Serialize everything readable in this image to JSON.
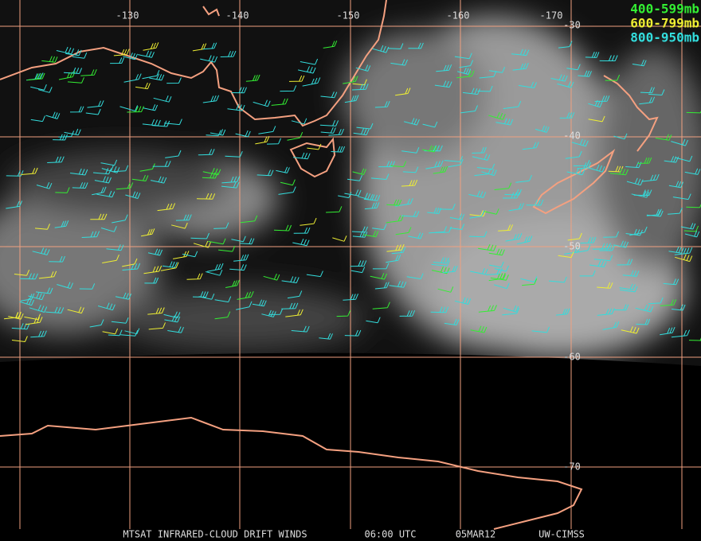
{
  "map": {
    "longitude_labels": [
      "-130",
      "-140",
      "-150",
      "-160",
      "-170"
    ],
    "latitude_labels": [
      "-30",
      "-40",
      "-50",
      "-60",
      "-70"
    ],
    "legend": [
      {
        "label": "400-599mb",
        "color": "#33ee33"
      },
      {
        "label": "600-799mb",
        "color": "#eeee33"
      },
      {
        "label": "800-950mb",
        "color": "#33dddd"
      }
    ],
    "footer": [
      "MTSAT INFRARED-CLOUD DRIFT WINDS",
      "06:00 UTC",
      "05MAR12",
      "UW-CIMSS"
    ]
  }
}
